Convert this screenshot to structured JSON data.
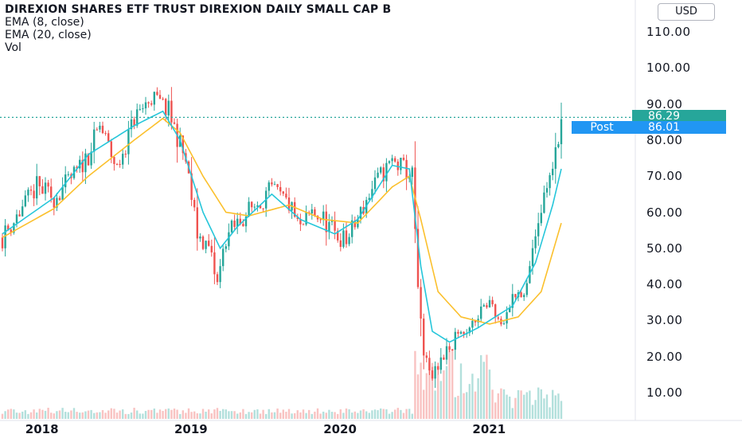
{
  "header": {
    "title": "DIREXION SHARES ETF TRUST DIREXION DAILY SMALL CAP B",
    "indicators": [
      "EMA (8, close)",
      "EMA (20, close)",
      "Vol"
    ],
    "currency": "USD"
  },
  "price_labels": {
    "last": "86.29",
    "post_label": "Post",
    "post": "86.01"
  },
  "colors": {
    "up": "#26a69a",
    "down": "#ef5350",
    "ema8": "#26c6da",
    "ema20": "#fbc02d",
    "last_line": "#26a69a",
    "post_tag": "#2196f3"
  },
  "chart_data": {
    "type": "candlestick",
    "interval": "weekly",
    "x_axis_labels": [
      "2018",
      "2019",
      "2020",
      "2021"
    ],
    "y_axis_labels": [
      "110.00",
      "100.00",
      "90.00",
      "80.00",
      "70.00",
      "60.00",
      "50.00",
      "40.00",
      "30.00",
      "20.00",
      "10.00"
    ],
    "ylim": [
      3,
      114
    ],
    "grid": false,
    "last_price": 86.29,
    "post_price": 86.01,
    "close_path": [
      [
        0,
        53
      ],
      [
        6,
        60
      ],
      [
        12,
        67
      ],
      [
        18,
        64
      ],
      [
        26,
        71
      ],
      [
        30,
        76
      ],
      [
        34,
        84
      ],
      [
        40,
        72
      ],
      [
        46,
        86
      ],
      [
        52,
        92
      ],
      [
        58,
        88
      ],
      [
        64,
        74
      ],
      [
        68,
        54
      ],
      [
        72,
        50
      ],
      [
        75,
        40
      ],
      [
        78,
        53
      ],
      [
        82,
        57
      ],
      [
        88,
        62
      ],
      [
        94,
        66
      ],
      [
        100,
        62
      ],
      [
        104,
        55
      ],
      [
        108,
        60
      ],
      [
        112,
        58
      ],
      [
        116,
        54
      ],
      [
        120,
        52
      ],
      [
        124,
        58
      ],
      [
        128,
        65
      ],
      [
        132,
        70
      ],
      [
        136,
        74
      ],
      [
        140,
        72
      ],
      [
        143,
        70
      ],
      [
        145,
        40
      ],
      [
        147,
        19
      ],
      [
        150,
        15
      ],
      [
        154,
        20
      ],
      [
        158,
        25
      ],
      [
        162,
        27
      ],
      [
        166,
        32
      ],
      [
        170,
        35
      ],
      [
        174,
        29
      ],
      [
        178,
        37
      ],
      [
        182,
        38
      ],
      [
        186,
        52
      ],
      [
        190,
        68
      ],
      [
        193,
        77
      ],
      [
        195,
        86
      ]
    ],
    "ema8": [
      [
        0,
        54
      ],
      [
        18,
        64
      ],
      [
        30,
        76
      ],
      [
        46,
        84
      ],
      [
        56,
        88
      ],
      [
        62,
        80
      ],
      [
        70,
        60
      ],
      [
        76,
        50
      ],
      [
        82,
        56
      ],
      [
        94,
        65
      ],
      [
        104,
        58
      ],
      [
        116,
        54
      ],
      [
        124,
        58
      ],
      [
        136,
        73
      ],
      [
        142,
        72
      ],
      [
        146,
        45
      ],
      [
        150,
        27
      ],
      [
        156,
        24
      ],
      [
        166,
        28
      ],
      [
        178,
        34
      ],
      [
        186,
        46
      ],
      [
        192,
        62
      ],
      [
        195,
        72
      ]
    ],
    "ema20": [
      [
        0,
        53
      ],
      [
        18,
        61
      ],
      [
        30,
        70
      ],
      [
        46,
        80
      ],
      [
        56,
        86
      ],
      [
        62,
        82
      ],
      [
        70,
        70
      ],
      [
        78,
        60
      ],
      [
        86,
        59
      ],
      [
        100,
        62
      ],
      [
        112,
        58
      ],
      [
        124,
        57
      ],
      [
        136,
        67
      ],
      [
        142,
        70
      ],
      [
        146,
        58
      ],
      [
        152,
        38
      ],
      [
        160,
        31
      ],
      [
        170,
        29
      ],
      [
        180,
        31
      ],
      [
        188,
        38
      ],
      [
        195,
        57
      ]
    ],
    "volume_note": "weekly volume bars, elevated from 2020-03 onward"
  }
}
